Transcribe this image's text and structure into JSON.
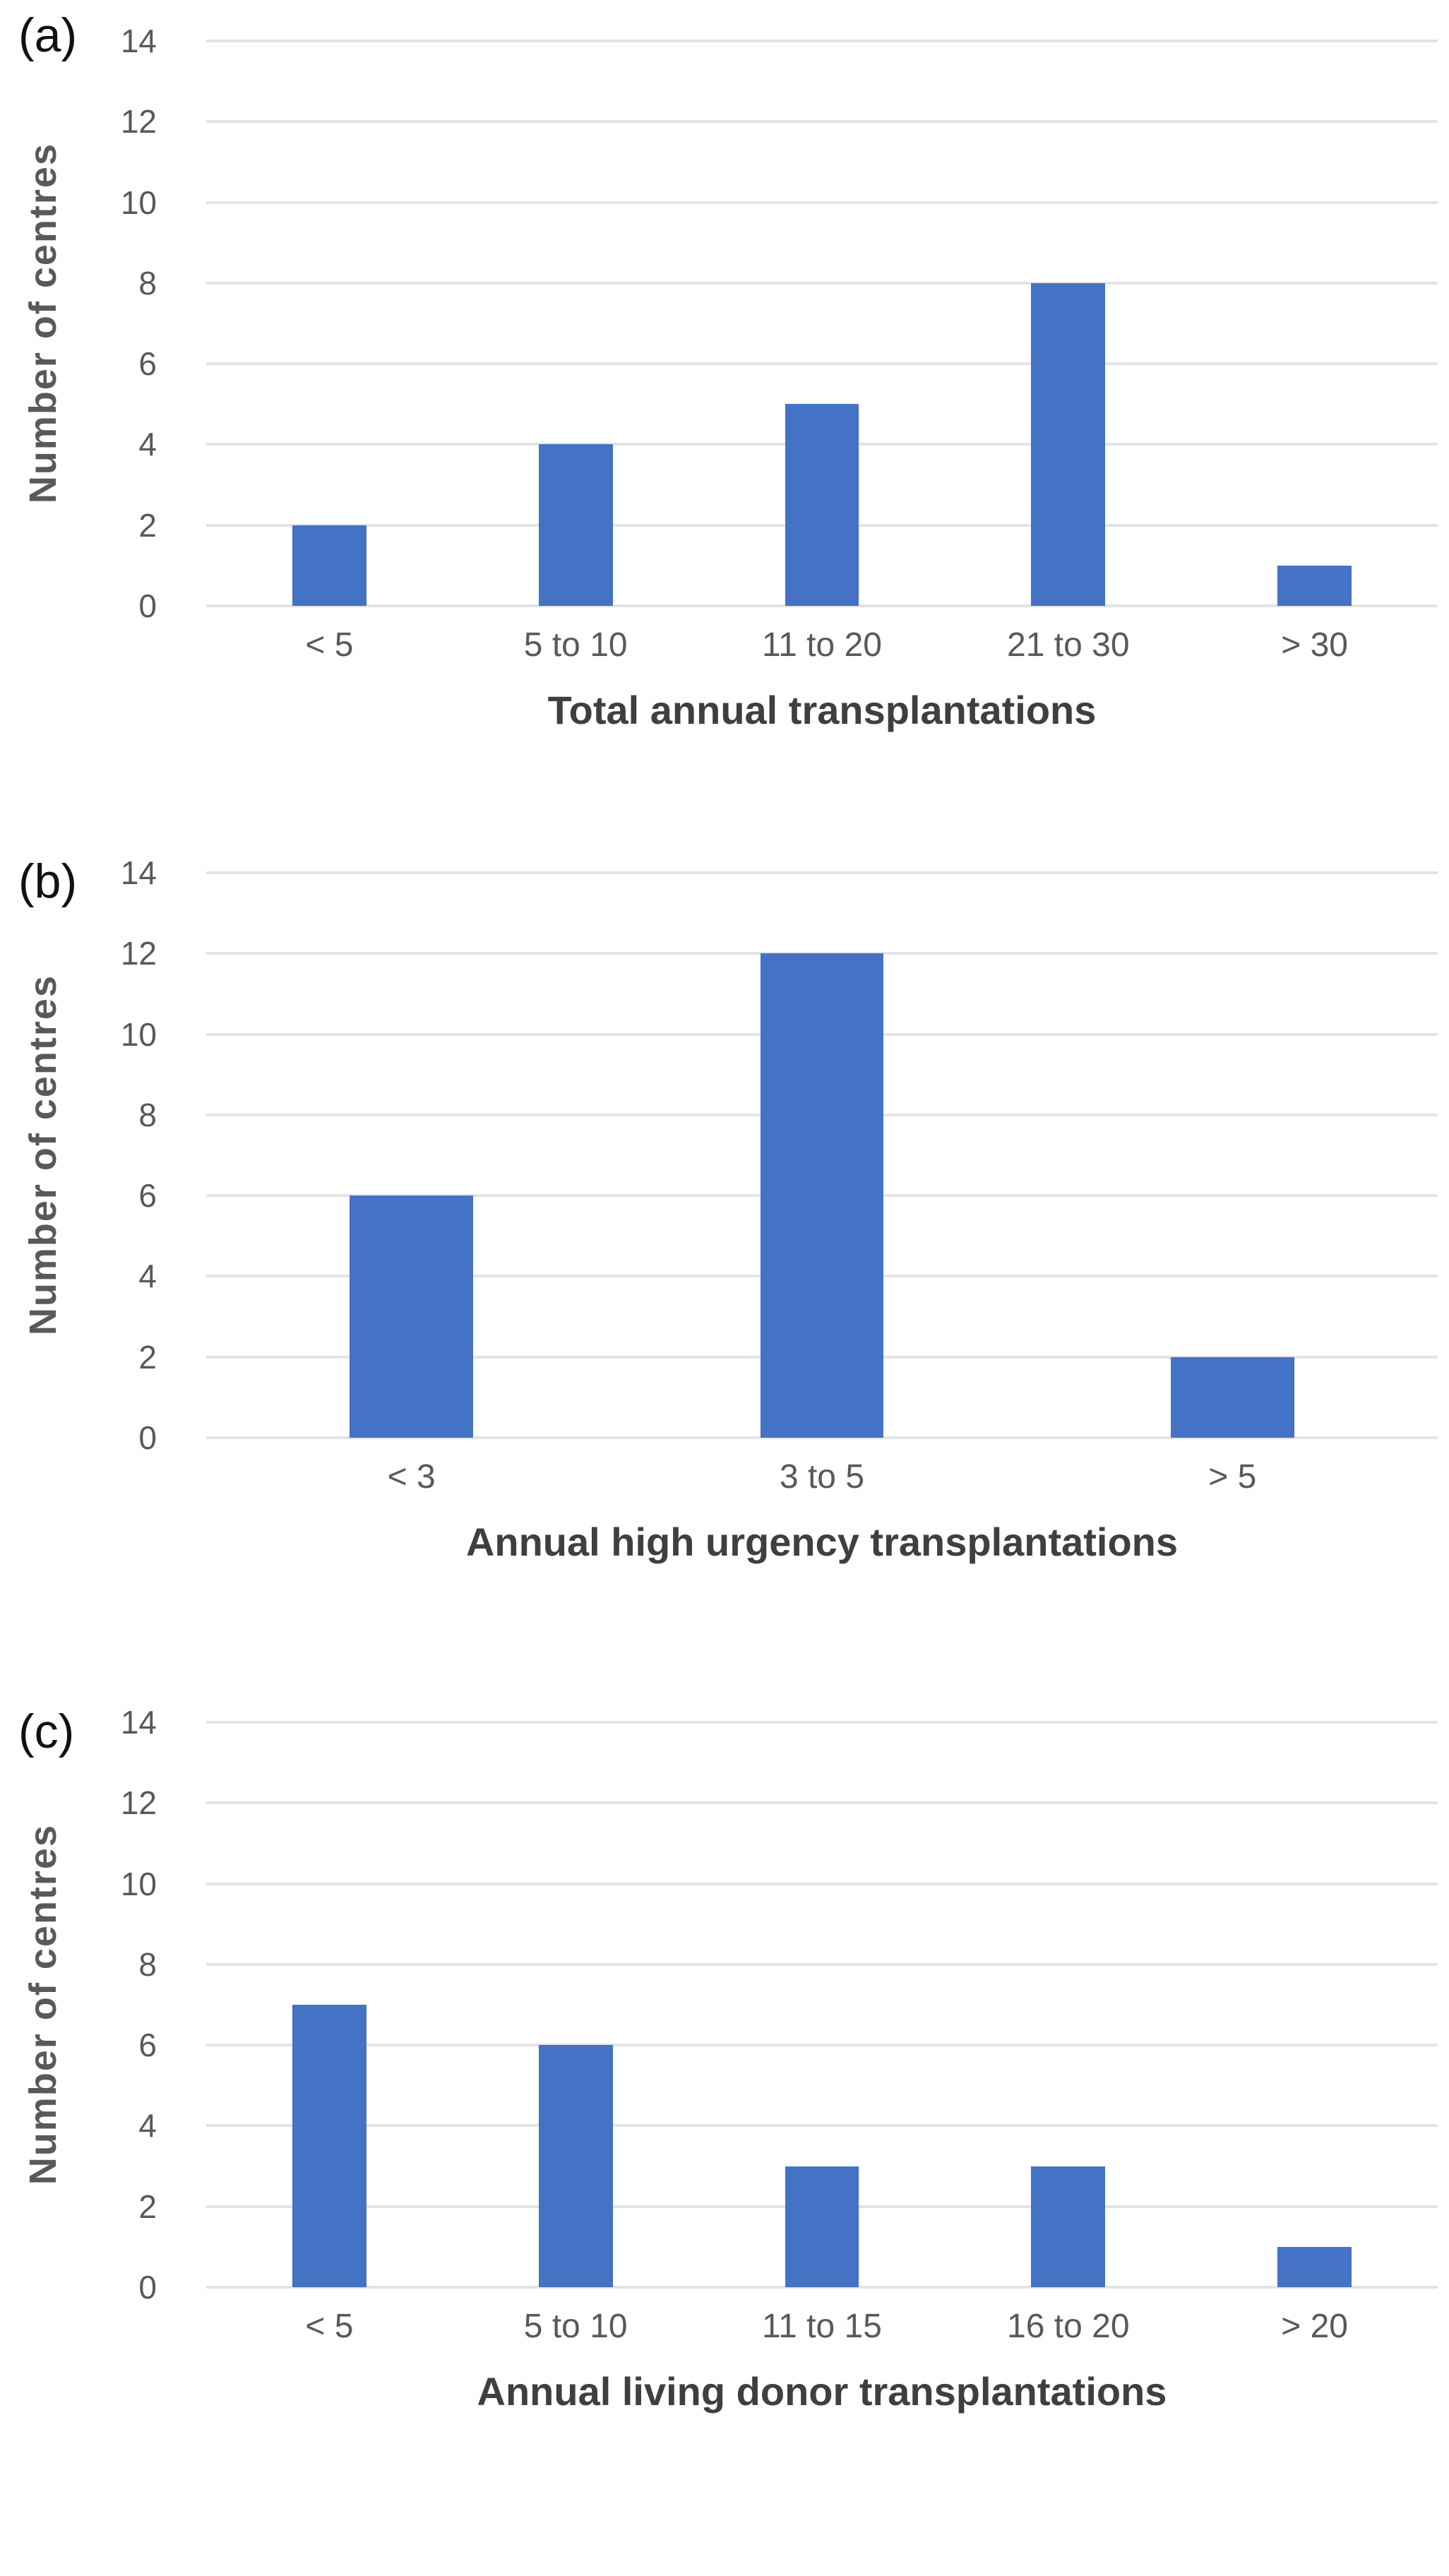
{
  "colors": {
    "bar": "#4472C4",
    "gridline": "#E3E3E3",
    "tick_label": "#595959",
    "axis_title": "#3F3F3F",
    "panel_label": "#111111"
  },
  "chart_data": [
    {
      "type": "bar",
      "panel_label": "(a)",
      "categories": [
        "< 5",
        "5 to 10",
        "11 to 20",
        "21 to 30",
        "> 30"
      ],
      "values": [
        2,
        4,
        5,
        8,
        1
      ],
      "title": "",
      "xlabel": "Total annual transplantations",
      "ylabel": "Number of centres",
      "ylim": [
        0,
        14
      ],
      "yticks": [
        0,
        2,
        4,
        6,
        8,
        10,
        12,
        14
      ],
      "grid": true,
      "legend": "none"
    },
    {
      "type": "bar",
      "panel_label": "(b)",
      "categories": [
        "< 3",
        "3 to 5",
        "> 5"
      ],
      "values": [
        6,
        12,
        2
      ],
      "title": "",
      "xlabel": "Annual high urgency transplantations",
      "ylabel": "Number of centres",
      "ylim": [
        0,
        14
      ],
      "yticks": [
        0,
        2,
        4,
        6,
        8,
        10,
        12,
        14
      ],
      "grid": true,
      "legend": "none"
    },
    {
      "type": "bar",
      "panel_label": "(c)",
      "categories": [
        "< 5",
        "5 to 10",
        "11 to 15",
        "16 to 20",
        "> 20"
      ],
      "values": [
        7,
        6,
        3,
        3,
        1
      ],
      "title": "",
      "xlabel": "Annual living donor transplantations",
      "ylabel": "Number of centres",
      "ylim": [
        0,
        14
      ],
      "yticks": [
        0,
        2,
        4,
        6,
        8,
        10,
        12,
        14
      ],
      "grid": true,
      "legend": "none"
    }
  ]
}
